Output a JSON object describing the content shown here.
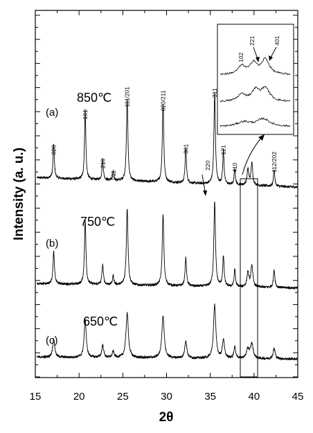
{
  "chart_data": {
    "type": "line",
    "xlabel": "2θ",
    "ylabel": "Intensity (a. u.)",
    "xlim": [
      15,
      45
    ],
    "x_ticks": [
      15,
      20,
      25,
      30,
      35,
      40,
      45
    ],
    "grid": false,
    "series": [
      {
        "curve_label": "(a)",
        "temperature": "850℃",
        "baseline": 0.92,
        "peaks": [
          {
            "x": 17.1,
            "h": 1.65,
            "w": 0.09
          },
          {
            "x": 20.7,
            "h": 3.35,
            "w": 0.09
          },
          {
            "x": 22.7,
            "h": 1.0,
            "w": 0.09
          },
          {
            "x": 23.9,
            "h": 0.45,
            "w": 0.08
          },
          {
            "x": 25.5,
            "h": 3.95,
            "w": 0.1
          },
          {
            "x": 29.6,
            "h": 3.75,
            "w": 0.1
          },
          {
            "x": 32.2,
            "h": 1.7,
            "w": 0.09
          },
          {
            "x": 35.5,
            "h": 4.4,
            "w": 0.1
          },
          {
            "x": 36.5,
            "h": 1.65,
            "w": 0.09
          },
          {
            "x": 37.8,
            "h": 0.8,
            "w": 0.08
          },
          {
            "x": 39.3,
            "h": 0.75,
            "w": 0.12
          },
          {
            "x": 39.75,
            "h": 1.05,
            "w": 0.12
          },
          {
            "x": 42.3,
            "h": 0.8,
            "w": 0.09
          }
        ]
      },
      {
        "curve_label": "(b)",
        "temperature": "750℃",
        "baseline": 0.42,
        "peaks": [
          {
            "x": 17.1,
            "h": 1.55,
            "w": 0.1
          },
          {
            "x": 20.7,
            "h": 3.1,
            "w": 0.1
          },
          {
            "x": 22.7,
            "h": 0.95,
            "w": 0.1
          },
          {
            "x": 23.9,
            "h": 0.45,
            "w": 0.09
          },
          {
            "x": 25.5,
            "h": 3.7,
            "w": 0.11
          },
          {
            "x": 29.6,
            "h": 3.4,
            "w": 0.11
          },
          {
            "x": 32.2,
            "h": 1.35,
            "w": 0.1
          },
          {
            "x": 35.5,
            "h": 4.1,
            "w": 0.11
          },
          {
            "x": 36.5,
            "h": 1.45,
            "w": 0.1
          },
          {
            "x": 37.8,
            "h": 0.85,
            "w": 0.09
          },
          {
            "x": 39.3,
            "h": 0.7,
            "w": 0.13
          },
          {
            "x": 39.75,
            "h": 1.05,
            "w": 0.13
          },
          {
            "x": 42.3,
            "h": 0.85,
            "w": 0.1
          }
        ]
      },
      {
        "curve_label": "(c)",
        "temperature": "650℃",
        "baseline": 0.18,
        "peaks": [
          {
            "x": 17.1,
            "h": 0.9,
            "w": 0.14
          },
          {
            "x": 20.7,
            "h": 1.85,
            "w": 0.14
          },
          {
            "x": 22.7,
            "h": 0.6,
            "w": 0.13
          },
          {
            "x": 23.9,
            "h": 0.3,
            "w": 0.12
          },
          {
            "x": 25.5,
            "h": 2.15,
            "w": 0.16
          },
          {
            "x": 29.6,
            "h": 2.05,
            "w": 0.16
          },
          {
            "x": 32.2,
            "h": 0.85,
            "w": 0.14
          },
          {
            "x": 35.5,
            "h": 2.6,
            "w": 0.15
          },
          {
            "x": 36.5,
            "h": 0.9,
            "w": 0.14
          },
          {
            "x": 37.8,
            "h": 0.55,
            "w": 0.13
          },
          {
            "x": 39.3,
            "h": 0.45,
            "w": 0.18
          },
          {
            "x": 39.75,
            "h": 0.7,
            "w": 0.18
          },
          {
            "x": 42.3,
            "h": 0.5,
            "w": 0.14
          }
        ]
      }
    ],
    "peak_labels": [
      {
        "text": "020",
        "x": 17.1
      },
      {
        "text": "101",
        "x": 20.7
      },
      {
        "text": "210",
        "x": 22.7
      },
      {
        "text": "011",
        "x": 23.9
      },
      {
        "text": "111/201",
        "x": 25.5
      },
      {
        "text": "020/211",
        "x": 29.6
      },
      {
        "text": "301",
        "x": 32.2
      },
      {
        "text": "220",
        "x": 34.7
      },
      {
        "text": "311",
        "x": 35.5
      },
      {
        "text": "121",
        "x": 36.5
      },
      {
        "text": "410",
        "x": 37.8
      },
      {
        "text": "112/202",
        "x": 42.3
      }
    ],
    "inset": {
      "labels": [
        "102",
        "221",
        "401"
      ],
      "zoom_x_range": [
        38.7,
        40.5
      ]
    }
  }
}
